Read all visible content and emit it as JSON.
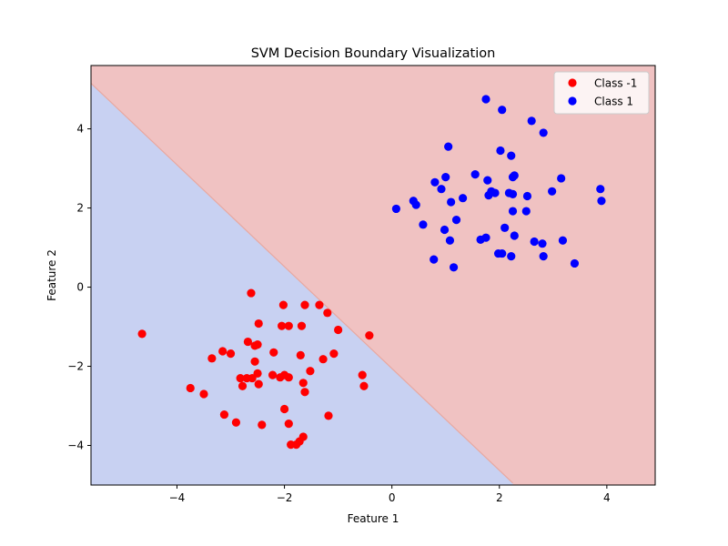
{
  "chart_data": {
    "type": "scatter",
    "title": "SVM Decision Boundary Visualization",
    "xlabel": "Feature 1",
    "ylabel": "Feature 2",
    "xlim": [
      -5.6,
      4.9
    ],
    "ylim": [
      -5.0,
      5.6
    ],
    "xticks": [
      -4,
      -2,
      0,
      2,
      4
    ],
    "yticks": [
      -4,
      -2,
      0,
      2,
      4
    ],
    "grid": false,
    "legend": "top-right",
    "decision_boundary": {
      "line": [
        [
          -5.6,
          5.15
        ],
        [
          2.25,
          -4.95
        ]
      ],
      "region_color_class_pos": "#f0c2c2",
      "region_color_class_neg": "#c8d1f2",
      "boundary_edge_color": "#e8a8a0"
    },
    "series": [
      {
        "name": "Class -1",
        "color": "#ff0000",
        "points": [
          [
            -4.65,
            -1.18
          ],
          [
            -3.75,
            -2.55
          ],
          [
            -3.5,
            -2.7
          ],
          [
            -3.35,
            -1.8
          ],
          [
            -3.15,
            -1.62
          ],
          [
            -3.12,
            -3.22
          ],
          [
            -3.0,
            -1.68
          ],
          [
            -2.9,
            -3.42
          ],
          [
            -2.82,
            -2.3
          ],
          [
            -2.78,
            -2.5
          ],
          [
            -2.7,
            -2.3
          ],
          [
            -2.68,
            -1.38
          ],
          [
            -2.62,
            -0.15
          ],
          [
            -2.6,
            -2.3
          ],
          [
            -2.55,
            -1.88
          ],
          [
            -2.55,
            -1.48
          ],
          [
            -2.5,
            -1.45
          ],
          [
            -2.5,
            -2.18
          ],
          [
            -2.48,
            -2.45
          ],
          [
            -2.48,
            -0.92
          ],
          [
            -2.42,
            -3.48
          ],
          [
            -2.22,
            -2.22
          ],
          [
            -2.2,
            -1.65
          ],
          [
            -2.08,
            -2.28
          ],
          [
            -2.05,
            -0.98
          ],
          [
            -2.02,
            -0.45
          ],
          [
            -2.0,
            -2.22
          ],
          [
            -2.0,
            -3.08
          ],
          [
            -1.92,
            -2.28
          ],
          [
            -1.92,
            -0.98
          ],
          [
            -1.92,
            -3.45
          ],
          [
            -1.88,
            -3.98
          ],
          [
            -1.78,
            -3.98
          ],
          [
            -1.72,
            -3.9
          ],
          [
            -1.7,
            -1.72
          ],
          [
            -1.68,
            -0.98
          ],
          [
            -1.65,
            -3.78
          ],
          [
            -1.65,
            -2.42
          ],
          [
            -1.62,
            -0.45
          ],
          [
            -1.62,
            -2.65
          ],
          [
            -1.52,
            -2.12
          ],
          [
            -1.35,
            -0.45
          ],
          [
            -1.28,
            -1.82
          ],
          [
            -1.2,
            -0.65
          ],
          [
            -1.18,
            -3.25
          ],
          [
            -1.08,
            -1.68
          ],
          [
            -1.0,
            -1.08
          ],
          [
            -0.55,
            -2.22
          ],
          [
            -0.52,
            -2.5
          ],
          [
            -0.42,
            -1.22
          ]
        ]
      },
      {
        "name": "Class 1",
        "color": "#0000ff",
        "points": [
          [
            0.08,
            1.98
          ],
          [
            0.4,
            2.18
          ],
          [
            0.45,
            2.08
          ],
          [
            0.58,
            1.58
          ],
          [
            0.78,
            0.7
          ],
          [
            0.8,
            2.65
          ],
          [
            0.92,
            2.48
          ],
          [
            0.98,
            1.45
          ],
          [
            1.0,
            2.78
          ],
          [
            1.05,
            3.55
          ],
          [
            1.08,
            1.18
          ],
          [
            1.1,
            2.15
          ],
          [
            1.15,
            0.5
          ],
          [
            1.2,
            1.7
          ],
          [
            1.32,
            2.25
          ],
          [
            1.55,
            2.85
          ],
          [
            1.65,
            1.2
          ],
          [
            1.75,
            1.25
          ],
          [
            1.75,
            4.75
          ],
          [
            1.78,
            2.7
          ],
          [
            1.8,
            2.32
          ],
          [
            1.85,
            2.42
          ],
          [
            1.92,
            2.38
          ],
          [
            1.98,
            0.85
          ],
          [
            2.02,
            3.45
          ],
          [
            2.05,
            4.48
          ],
          [
            2.05,
            0.85
          ],
          [
            2.1,
            1.5
          ],
          [
            2.18,
            2.38
          ],
          [
            2.22,
            0.78
          ],
          [
            2.22,
            3.32
          ],
          [
            2.25,
            2.35
          ],
          [
            2.25,
            1.92
          ],
          [
            2.25,
            2.78
          ],
          [
            2.28,
            2.82
          ],
          [
            2.28,
            1.3
          ],
          [
            2.5,
            1.92
          ],
          [
            2.52,
            2.3
          ],
          [
            2.6,
            4.2
          ],
          [
            2.65,
            1.15
          ],
          [
            2.8,
            1.1
          ],
          [
            2.82,
            0.78
          ],
          [
            2.82,
            3.9
          ],
          [
            2.98,
            2.42
          ],
          [
            3.15,
            2.75
          ],
          [
            3.18,
            1.18
          ],
          [
            3.4,
            0.6
          ],
          [
            3.88,
            2.48
          ],
          [
            3.9,
            2.18
          ]
        ]
      }
    ]
  }
}
